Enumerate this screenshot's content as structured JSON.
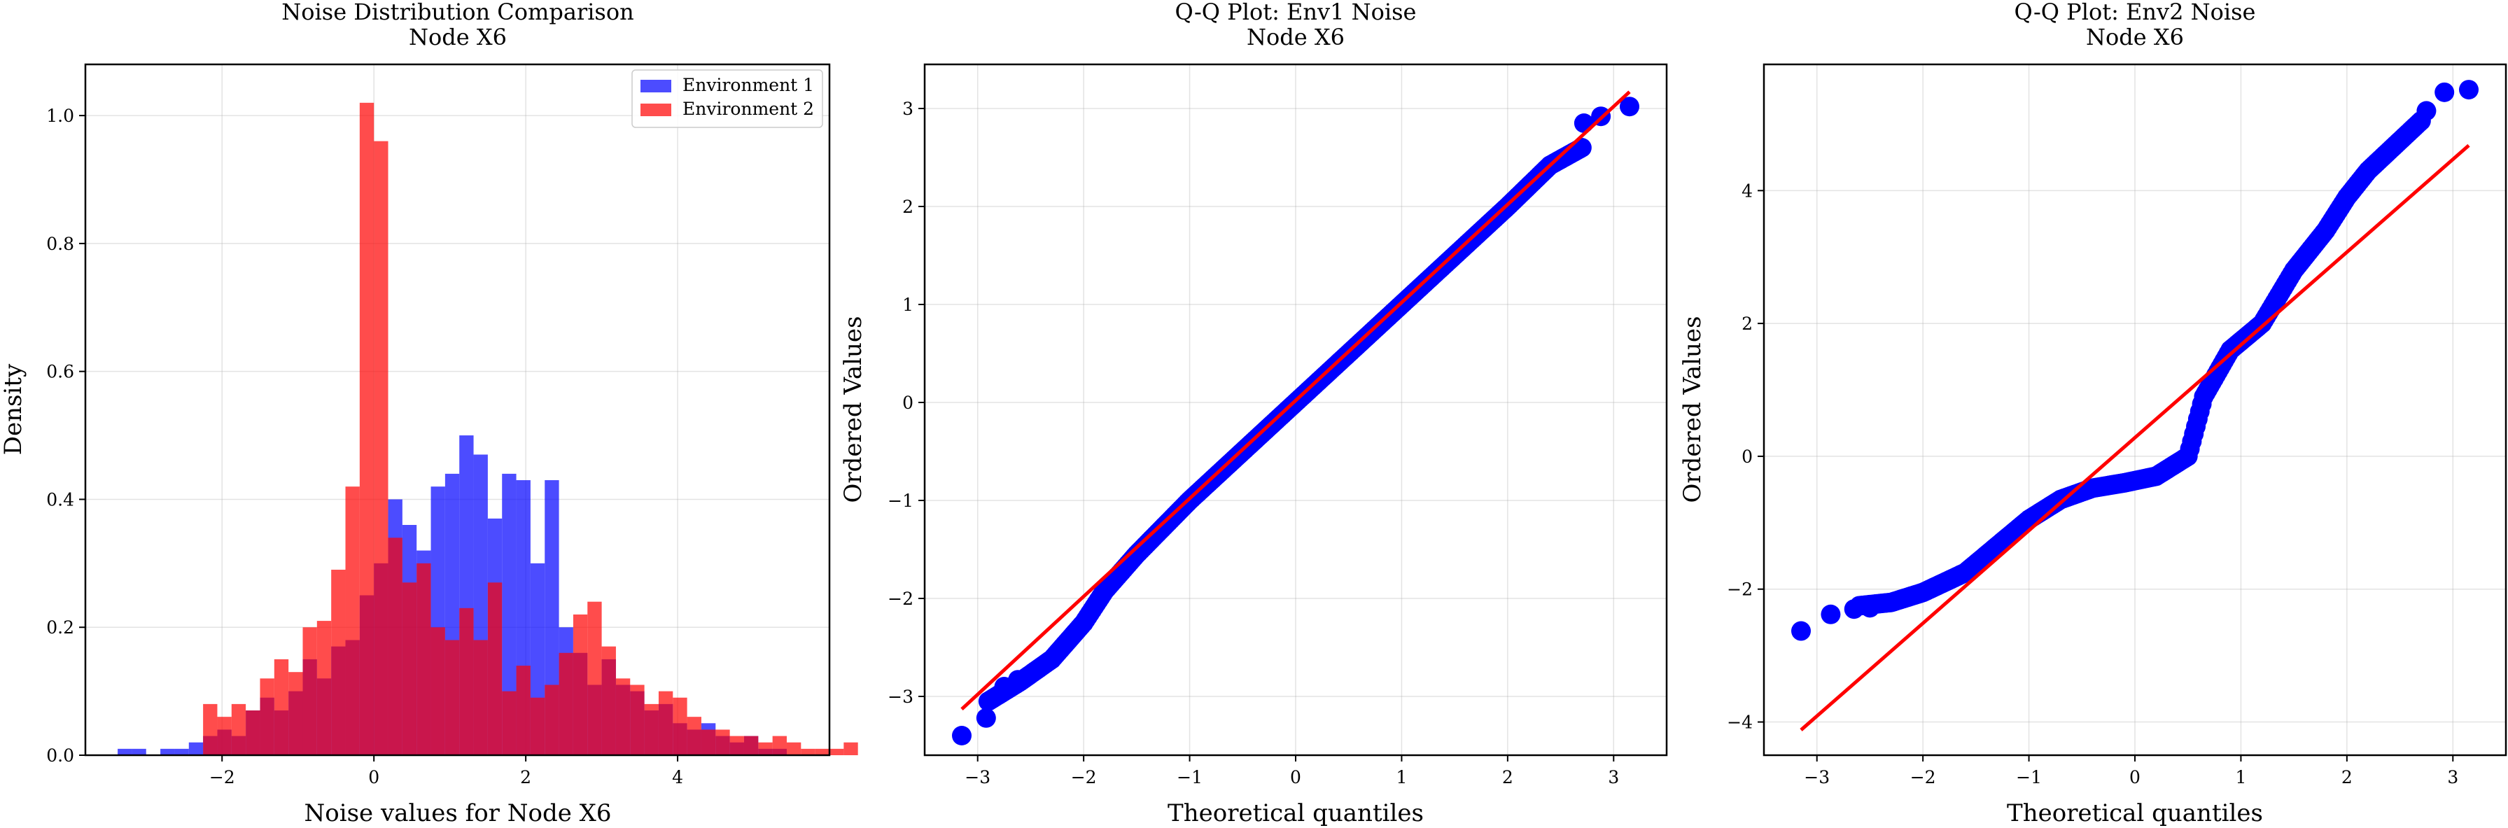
{
  "chart_data": [
    {
      "type": "histogram",
      "title": "Noise Distribution Comparison",
      "subtitle": "Node X6",
      "xlabel": "Noise values for Node X6",
      "ylabel": "Density",
      "xlim": [
        -3.8,
        6.0
      ],
      "ylim": [
        0,
        1.08
      ],
      "xticks": [
        -2,
        0,
        2,
        4
      ],
      "yticks": [
        0.0,
        0.2,
        0.4,
        0.6,
        0.8,
        1.0
      ],
      "grid": true,
      "legend_position": "top-right",
      "bin_width": 0.1875,
      "series": [
        {
          "name": "Environment 1",
          "color": "#0000ff",
          "opacity": 0.7,
          "bin_start": -3.375,
          "values": [
            0.01,
            0.01,
            0.0,
            0.01,
            0.01,
            0.02,
            0.03,
            0.04,
            0.03,
            0.07,
            0.09,
            0.07,
            0.1,
            0.15,
            0.12,
            0.17,
            0.18,
            0.25,
            0.3,
            0.4,
            0.36,
            0.32,
            0.42,
            0.44,
            0.5,
            0.47,
            0.37,
            0.44,
            0.43,
            0.3,
            0.43,
            0.2,
            0.16,
            0.11,
            0.15,
            0.11,
            0.1,
            0.07,
            0.08,
            0.05,
            0.04,
            0.05,
            0.03,
            0.02,
            0.03,
            0.01,
            0.01
          ]
        },
        {
          "name": "Environment 2",
          "color": "#ff0000",
          "opacity": 0.7,
          "bin_start": -2.25,
          "values": [
            0.08,
            0.06,
            0.08,
            0.07,
            0.12,
            0.15,
            0.13,
            0.2,
            0.21,
            0.29,
            0.42,
            1.02,
            0.96,
            0.34,
            0.27,
            0.3,
            0.2,
            0.18,
            0.23,
            0.18,
            0.27,
            0.1,
            0.14,
            0.09,
            0.11,
            0.16,
            0.22,
            0.24,
            0.17,
            0.12,
            0.11,
            0.08,
            0.1,
            0.09,
            0.06,
            0.04,
            0.04,
            0.03,
            0.03,
            0.02,
            0.03,
            0.02,
            0.01,
            0.01,
            0.01,
            0.02
          ]
        }
      ]
    },
    {
      "type": "scatter",
      "title": "Q-Q Plot: Env1 Noise",
      "subtitle": "Node X6",
      "xlabel": "Theoretical quantiles",
      "ylabel": "Ordered Values",
      "xlim": [
        -3.5,
        3.5
      ],
      "ylim": [
        -3.6,
        3.45
      ],
      "xticks": [
        -3,
        -2,
        -1,
        0,
        1,
        2,
        3
      ],
      "yticks": [
        -3,
        -2,
        -1,
        0,
        1,
        2,
        3
      ],
      "grid": true,
      "point_color": "#0000ff",
      "line_color": "#ff0000",
      "fit_line": [
        [
          -3.15,
          -3.13
        ],
        [
          3.15,
          3.17
        ]
      ],
      "curve": [
        [
          -2.9,
          -3.05
        ],
        [
          -2.6,
          -2.85
        ],
        [
          -2.3,
          -2.62
        ],
        [
          -2.0,
          -2.25
        ],
        [
          -1.8,
          -1.92
        ],
        [
          -1.5,
          -1.55
        ],
        [
          -1.2,
          -1.22
        ],
        [
          -1.0,
          -1.0
        ],
        [
          -0.5,
          -0.5
        ],
        [
          0.0,
          0.0
        ],
        [
          0.5,
          0.5
        ],
        [
          1.0,
          1.0
        ],
        [
          1.5,
          1.5
        ],
        [
          2.0,
          2.0
        ],
        [
          2.4,
          2.42
        ],
        [
          2.7,
          2.6
        ]
      ],
      "outliers": [
        [
          -3.15,
          -3.4
        ],
        [
          -2.92,
          -3.22
        ],
        [
          -2.75,
          -2.9
        ],
        [
          -2.62,
          -2.83
        ],
        [
          2.72,
          2.85
        ],
        [
          2.88,
          2.92
        ],
        [
          3.15,
          3.02
        ]
      ]
    },
    {
      "type": "scatter",
      "title": "Q-Q Plot: Env2 Noise",
      "subtitle": "Node X6",
      "xlabel": "Theoretical quantiles",
      "ylabel": "Ordered Values",
      "xlim": [
        -3.5,
        3.5
      ],
      "ylim": [
        -4.5,
        5.9
      ],
      "xticks": [
        -3,
        -2,
        -1,
        0,
        1,
        2,
        3
      ],
      "yticks": [
        -4,
        -2,
        0,
        2,
        4
      ],
      "grid": true,
      "point_color": "#0000ff",
      "line_color": "#ff0000",
      "fit_line": [
        [
          -3.15,
          -4.12
        ],
        [
          3.15,
          4.68
        ]
      ],
      "curve": [
        [
          -2.6,
          -2.25
        ],
        [
          -2.3,
          -2.2
        ],
        [
          -2.0,
          -2.05
        ],
        [
          -1.6,
          -1.75
        ],
        [
          -1.3,
          -1.35
        ],
        [
          -1.0,
          -0.95
        ],
        [
          -0.7,
          -0.65
        ],
        [
          -0.4,
          -0.48
        ],
        [
          -0.1,
          -0.4
        ],
        [
          0.2,
          -0.3
        ],
        [
          0.5,
          0.0
        ],
        [
          0.65,
          0.9
        ],
        [
          0.9,
          1.6
        ],
        [
          1.2,
          2.0
        ],
        [
          1.5,
          2.8
        ],
        [
          1.8,
          3.4
        ],
        [
          2.0,
          3.9
        ],
        [
          2.2,
          4.3
        ],
        [
          2.5,
          4.75
        ],
        [
          2.7,
          5.05
        ]
      ],
      "outliers": [
        [
          -3.15,
          -2.63
        ],
        [
          -2.87,
          -2.38
        ],
        [
          -2.65,
          -2.3
        ],
        [
          -2.5,
          -2.28
        ],
        [
          2.75,
          5.2
        ],
        [
          2.92,
          5.48
        ],
        [
          3.15,
          5.52
        ]
      ]
    }
  ]
}
